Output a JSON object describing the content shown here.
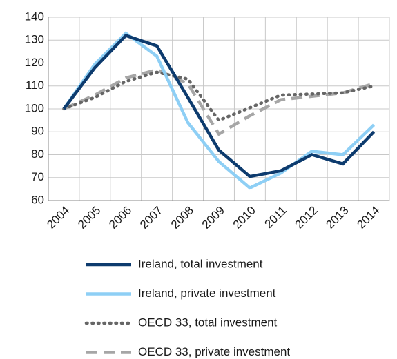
{
  "chart_data": {
    "type": "line",
    "categories": [
      "2004",
      "2005",
      "2006",
      "2007",
      "2008",
      "2009",
      "2010",
      "2011",
      "2012",
      "2013",
      "2014"
    ],
    "series": [
      {
        "name": "Ireland, total investment",
        "color": "#0d3b6e",
        "dash": "solid",
        "values": [
          100,
          118,
          132,
          127.5,
          105,
          82,
          70.5,
          73,
          80,
          76,
          90
        ]
      },
      {
        "name": "Ireland, private investment",
        "color": "#8ecff5",
        "dash": "solid",
        "values": [
          100,
          119.5,
          133,
          123,
          94,
          77,
          65.5,
          72,
          81.5,
          80,
          93
        ]
      },
      {
        "name": "OECD 33, total investment",
        "color": "#666666",
        "dash": "dotted",
        "values": [
          100,
          105,
          112,
          116,
          113,
          95,
          100.5,
          106,
          106.5,
          107,
          110
        ]
      },
      {
        "name": "OECD 33, private investment",
        "color": "#a6a6a6",
        "dash": "dashed",
        "values": [
          100,
          106,
          113.5,
          117,
          111,
          89,
          97,
          104,
          105.5,
          107,
          111
        ]
      }
    ],
    "ylim": [
      60,
      140
    ],
    "yticks": [
      60,
      70,
      80,
      90,
      100,
      110,
      120,
      130,
      140
    ],
    "grid": true,
    "legend": "bottom"
  }
}
